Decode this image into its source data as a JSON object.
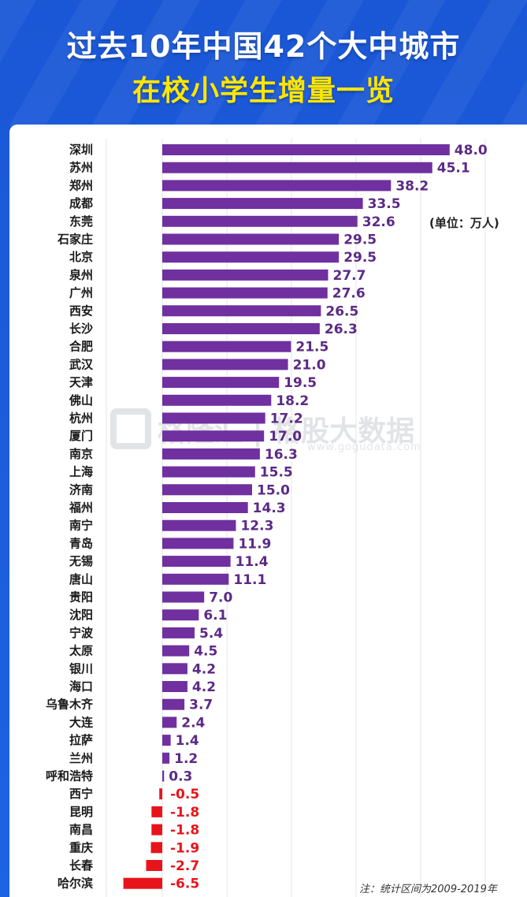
{
  "title_line1": "过去10年中国42个大中城市",
  "title_line2": "在校小学生增量一览",
  "unit_label": "(单位：万人)",
  "note": "注：统计区间为2009-2019年",
  "watermark": {
    "text": "格隆汇 | 格股大数据",
    "url": "www.gogudata.com"
  },
  "colors": {
    "positive": "#7030a0",
    "negative": "#e8141b",
    "value_positive": "#5b2a86",
    "value_negative": "#e8141b"
  },
  "chart_data": {
    "type": "bar",
    "orientation": "horizontal",
    "categories": [
      "深圳",
      "苏州",
      "郑州",
      "成都",
      "东莞",
      "石家庄",
      "北京",
      "泉州",
      "广州",
      "西安",
      "长沙",
      "合肥",
      "武汉",
      "天津",
      "佛山",
      "杭州",
      "厦门",
      "南京",
      "上海",
      "济南",
      "福州",
      "南宁",
      "青岛",
      "无锡",
      "唐山",
      "贵阳",
      "沈阳",
      "宁波",
      "太原",
      "银川",
      "海口",
      "乌鲁木齐",
      "大连",
      "拉萨",
      "兰州",
      "呼和浩特",
      "西宁",
      "昆明",
      "南昌",
      "重庆",
      "长春",
      "哈尔滨"
    ],
    "values": [
      48.0,
      45.1,
      38.2,
      33.5,
      32.6,
      29.5,
      29.5,
      27.7,
      27.6,
      26.5,
      26.3,
      21.5,
      21.0,
      19.5,
      18.2,
      17.2,
      17.0,
      16.3,
      15.5,
      15.0,
      14.3,
      12.3,
      11.9,
      11.4,
      11.1,
      7.0,
      6.1,
      5.4,
      4.5,
      4.2,
      4.2,
      3.7,
      2.4,
      1.4,
      1.2,
      0.3,
      -0.5,
      -1.8,
      -1.8,
      -1.9,
      -2.7,
      -6.5
    ],
    "labels": [
      "48.0",
      "45.1",
      "38.2",
      "33.5",
      "32.6",
      "29.5",
      "29.5",
      "27.7",
      "27.6",
      "26.5",
      "26.3",
      "21.5",
      "21.0",
      "19.5",
      "18.2",
      "17.2",
      "17.0",
      "16.3",
      "15.5",
      "15.0",
      "14.3",
      "12.3",
      "11.9",
      "11.4",
      "11.1",
      "7.0",
      "6.1",
      "5.4",
      "4.5",
      "4.2",
      "4.2",
      "3.7",
      "2.4",
      "1.4",
      "1.2",
      "0.3",
      "-0.5",
      "-1.8",
      "-1.8",
      "-1.9",
      "-2.7",
      "-6.5"
    ],
    "grid": true
  }
}
